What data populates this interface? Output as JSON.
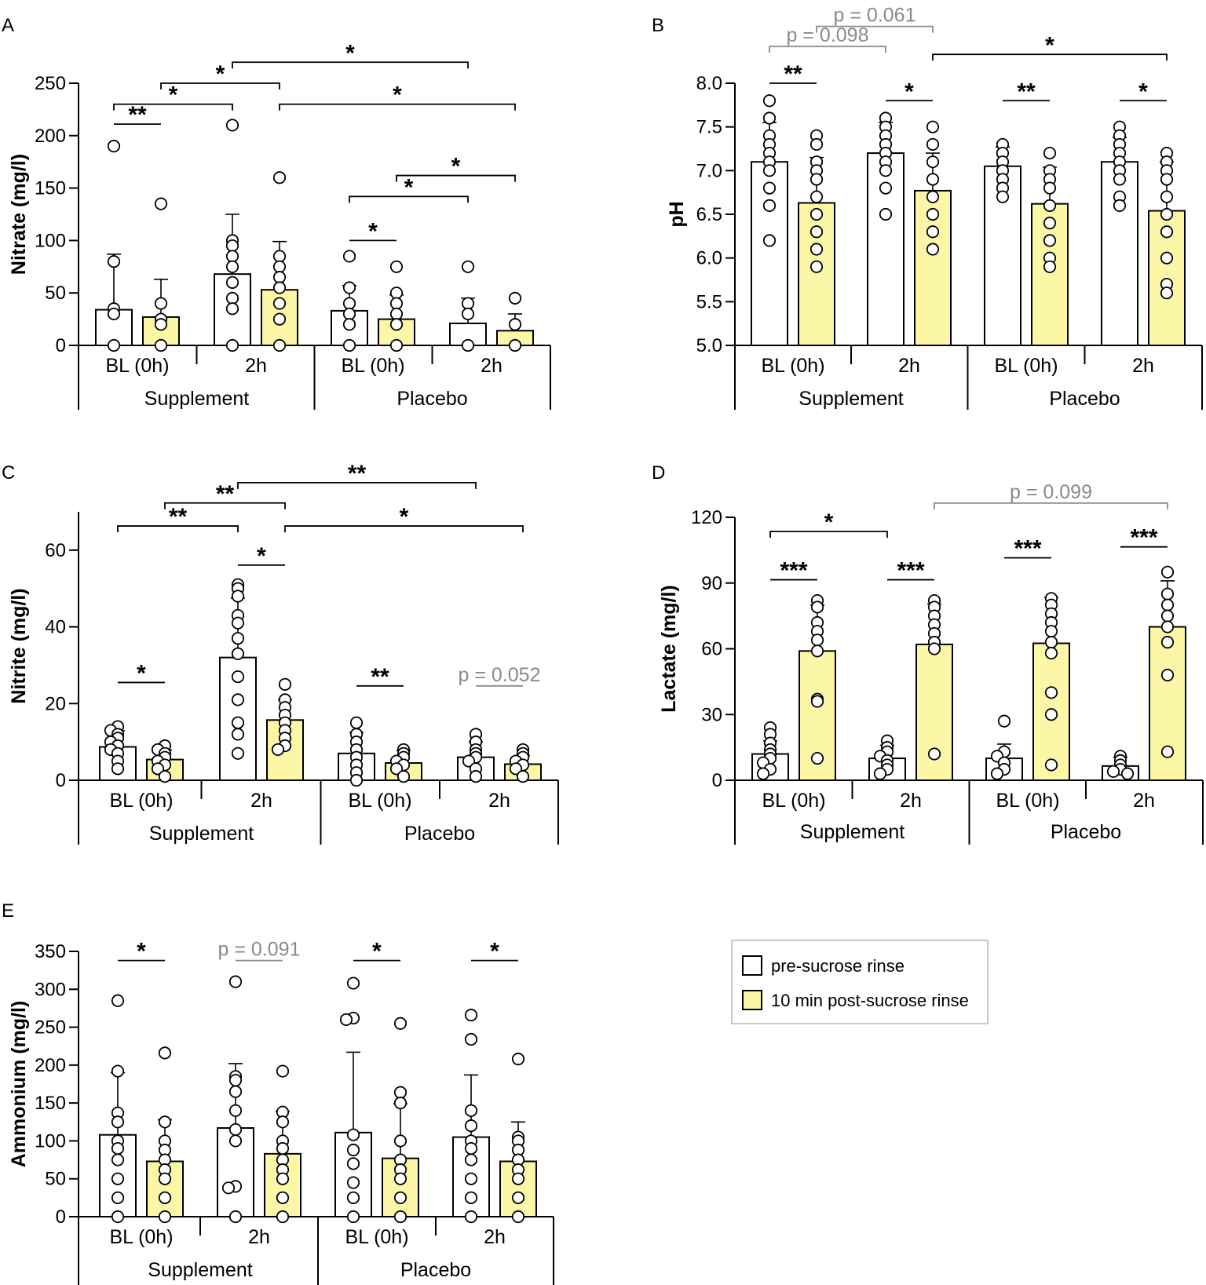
{
  "colors": {
    "pre": "#ffffff",
    "post": "#fcf7a6",
    "stroke": "#000000",
    "grey": "#8a8a8a"
  },
  "legend": {
    "pre_label": "pre-sucrose rinse",
    "post_label": "10 min post-sucrose rinse"
  },
  "chart_data": [
    {
      "panel": "A",
      "type": "bar",
      "ylabel": "Nitrate (mg/l)",
      "ylim": [
        0,
        250
      ],
      "yticks": [
        0,
        50,
        100,
        150,
        200,
        250
      ],
      "groups": [
        "Supplement",
        "Placebo"
      ],
      "timepoints": [
        "BL (0h)",
        "2h",
        "BL (0h)",
        "2h"
      ],
      "series": [
        {
          "name": "pre-sucrose rinse",
          "values": [
            34,
            68,
            33,
            21
          ],
          "sd": [
            53,
            57,
            24,
            24
          ],
          "points": [
            [
              190,
              80,
              35,
              30,
              0
            ],
            [
              210,
              100,
              95,
              85,
              75,
              60,
              45,
              35,
              0
            ],
            [
              85,
              55,
              40,
              30,
              20,
              0
            ],
            [
              75,
              40,
              30,
              0
            ]
          ]
        },
        {
          "name": "10 min post-sucrose rinse",
          "values": [
            27,
            53,
            25,
            14
          ],
          "sd": [
            36,
            46,
            23,
            16
          ],
          "points": [
            [
              135,
              40,
              25,
              20,
              0
            ],
            [
              160,
              85,
              75,
              65,
              55,
              40,
              25,
              0
            ],
            [
              75,
              50,
              40,
              30,
              20,
              0
            ],
            [
              45,
              20,
              0
            ]
          ]
        }
      ],
      "significance": [
        {
          "label": "**",
          "from": [
            0,
            0
          ],
          "to": [
            0,
            1
          ],
          "y": 211,
          "color": "black"
        },
        {
          "label": "*",
          "from": [
            0,
            0
          ],
          "to": [
            1,
            0
          ],
          "y": 230,
          "color": "black"
        },
        {
          "label": "*",
          "from": [
            0,
            1
          ],
          "to": [
            1,
            1
          ],
          "y": 250,
          "color": "black"
        },
        {
          "label": "*",
          "from": [
            1,
            0
          ],
          "to": [
            3,
            0
          ],
          "y": 270,
          "color": "black"
        },
        {
          "label": "*",
          "from": [
            1,
            1
          ],
          "to": [
            3,
            1
          ],
          "y": 230,
          "color": "black"
        },
        {
          "label": "*",
          "from": [
            2,
            0
          ],
          "to": [
            2,
            1
          ],
          "y": 100,
          "color": "black"
        },
        {
          "label": "*",
          "from": [
            2,
            0
          ],
          "to": [
            3,
            0
          ],
          "y": 142,
          "color": "black"
        },
        {
          "label": "*",
          "from": [
            2,
            1
          ],
          "to": [
            3,
            1
          ],
          "y": 162,
          "color": "black"
        }
      ]
    },
    {
      "panel": "B",
      "type": "bar",
      "ylabel": "pH",
      "ylim": [
        5.0,
        8.0
      ],
      "yticks": [
        "5.0",
        "5.5",
        "6.0",
        "6.5",
        "7.0",
        "7.5",
        "8.0"
      ],
      "groups": [
        "Supplement",
        "Placebo"
      ],
      "timepoints": [
        "BL (0h)",
        "2h",
        "BL (0h)",
        "2h"
      ],
      "series": [
        {
          "name": "pre-sucrose rinse",
          "values": [
            7.1,
            7.2,
            7.05,
            7.1
          ],
          "sd": [
            0.45,
            0.35,
            0.22,
            0.28
          ],
          "points": [
            [
              7.8,
              7.6,
              7.4,
              7.3,
              7.2,
              7.1,
              7.0,
              6.8,
              6.6,
              6.2
            ],
            [
              7.6,
              7.5,
              7.4,
              7.3,
              7.2,
              7.1,
              7.0,
              6.8,
              6.5
            ],
            [
              7.3,
              7.2,
              7.1,
              7.0,
              6.9,
              6.8,
              6.7
            ],
            [
              7.5,
              7.4,
              7.3,
              7.2,
              7.1,
              7.0,
              6.9,
              6.7,
              6.6
            ]
          ]
        },
        {
          "name": "10 min post-sucrose rinse",
          "values": [
            6.63,
            6.77,
            6.62,
            6.54
          ],
          "sd": [
            0.52,
            0.43,
            0.42,
            0.56
          ],
          "points": [
            [
              7.4,
              7.3,
              7.1,
              7.0,
              6.9,
              6.7,
              6.5,
              6.3,
              6.1,
              5.9
            ],
            [
              7.5,
              7.3,
              7.1,
              6.9,
              6.7,
              6.5,
              6.3,
              6.1
            ],
            [
              7.2,
              7.0,
              6.9,
              6.8,
              6.6,
              6.4,
              6.2,
              6.0,
              5.9
            ],
            [
              7.2,
              7.1,
              7.0,
              6.9,
              6.7,
              6.5,
              6.3,
              6.0,
              5.7,
              5.6
            ]
          ]
        }
      ],
      "significance": [
        {
          "label": "**",
          "from": [
            0,
            0
          ],
          "to": [
            0,
            1
          ],
          "y": 8.0,
          "color": "black"
        },
        {
          "label": "*",
          "from": [
            1,
            0
          ],
          "to": [
            1,
            1
          ],
          "y": 7.8,
          "color": "black"
        },
        {
          "label": "**",
          "from": [
            2,
            0
          ],
          "to": [
            2,
            1
          ],
          "y": 7.8,
          "color": "black"
        },
        {
          "label": "*",
          "from": [
            3,
            0
          ],
          "to": [
            3,
            1
          ],
          "y": 7.8,
          "color": "black"
        },
        {
          "label": "*",
          "from": [
            1,
            1
          ],
          "to": [
            3,
            1
          ],
          "y": 8.33,
          "color": "black"
        },
        {
          "label": "p = 0.098",
          "from": [
            0,
            0
          ],
          "to": [
            1,
            0
          ],
          "y": 8.42,
          "color": "grey"
        },
        {
          "label": "p = 0.061",
          "from": [
            0,
            1
          ],
          "to": [
            1,
            1
          ],
          "y": 8.65,
          "color": "grey"
        }
      ]
    },
    {
      "panel": "C",
      "type": "bar",
      "ylabel": "Nitrite (mg/l)",
      "ylim": [
        0,
        70
      ],
      "yticks": [
        0,
        20,
        40,
        60
      ],
      "groups": [
        "Supplement",
        "Placebo"
      ],
      "timepoints": [
        "BL (0h)",
        "2h",
        "BL (0h)",
        "2h"
      ],
      "series": [
        {
          "name": "pre-sucrose rinse",
          "values": [
            8.7,
            32,
            7,
            6
          ],
          "sd": [
            4.2,
            15.5,
            5.5,
            4
          ],
          "points": [
            [
              14,
              13,
              12,
              11,
              10,
              9,
              8,
              7,
              5,
              3
            ],
            [
              51,
              50,
              48,
              43,
              41,
              37,
              33,
              27,
              21,
              15,
              12,
              7
            ],
            [
              15,
              12,
              10,
              8,
              6,
              4,
              2,
              0
            ],
            [
              12,
              10,
              8,
              7,
              6,
              5,
              3,
              1
            ]
          ]
        },
        {
          "name": "10 min post-sucrose rinse",
          "values": [
            5.4,
            15.7,
            4.5,
            4.2
          ],
          "sd": [
            2.5,
            5.3,
            3.2,
            2.2
          ],
          "points": [
            [
              9,
              8,
              7,
              6,
              5,
              4,
              3,
              1
            ],
            [
              25,
              21,
              19,
              17,
              15,
              13,
              11,
              9,
              8
            ],
            [
              8,
              7,
              6,
              5,
              4,
              3,
              1
            ],
            [
              8,
              7,
              6,
              5,
              4,
              3,
              1
            ]
          ]
        }
      ],
      "significance": [
        {
          "label": "*",
          "from": [
            0,
            0
          ],
          "to": [
            0,
            1
          ],
          "y": 25.5,
          "color": "black"
        },
        {
          "label": "**",
          "from": [
            0,
            0
          ],
          "to": [
            1,
            0
          ],
          "y": 66.3,
          "color": "black"
        },
        {
          "label": "**",
          "from": [
            0,
            1
          ],
          "to": [
            1,
            1
          ],
          "y": 72.3,
          "color": "black"
        },
        {
          "label": "**",
          "from": [
            1,
            0
          ],
          "to": [
            3,
            0
          ],
          "y": 77.6,
          "color": "black"
        },
        {
          "label": "*",
          "from": [
            1,
            0
          ],
          "to": [
            1,
            1
          ],
          "y": 56.1,
          "color": "black"
        },
        {
          "label": "*",
          "from": [
            1,
            1
          ],
          "to": [
            3,
            1
          ],
          "y": 66.3,
          "color": "black"
        },
        {
          "label": "**",
          "from": [
            2,
            0
          ],
          "to": [
            2,
            1
          ],
          "y": 24.6,
          "color": "black"
        },
        {
          "label": "p = 0.052",
          "from": [
            3,
            0
          ],
          "to": [
            3,
            1
          ],
          "y": 24.6,
          "color": "grey"
        }
      ]
    },
    {
      "panel": "D",
      "type": "bar",
      "ylabel": "Lactate (mg/l)",
      "ylim": [
        0,
        120
      ],
      "yticks": [
        0,
        30,
        60,
        90,
        120
      ],
      "groups": [
        "Supplement",
        "Placebo"
      ],
      "timepoints": [
        "BL (0h)",
        "2h",
        "BL (0h)",
        "2h"
      ],
      "series": [
        {
          "name": "pre-sucrose rinse",
          "values": [
            12,
            10,
            10,
            6.5
          ],
          "sd": [
            6,
            6,
            6.5,
            4
          ],
          "points": [
            [
              24,
              21,
              17,
              14,
              12,
              10,
              8,
              5,
              3
            ],
            [
              18,
              15,
              13,
              11,
              9,
              7,
              5,
              3
            ],
            [
              27,
              13,
              11,
              8,
              5,
              3
            ],
            [
              11,
              9,
              7,
              5,
              4,
              3
            ]
          ]
        },
        {
          "name": "10 min post-sucrose rinse",
          "values": [
            59,
            62,
            62.5,
            70
          ],
          "sd": [
            21,
            18.5,
            21,
            21
          ],
          "points": [
            [
              82,
              79,
              72,
              68,
              64,
              59,
              37,
              36,
              10
            ],
            [
              82,
              79,
              75,
              71,
              67,
              63,
              60,
              12
            ],
            [
              83,
              80,
              76,
              72,
              68,
              63,
              58,
              40,
              30,
              7
            ],
            [
              95,
              85,
              80,
              75,
              70,
              63,
              48,
              13
            ]
          ]
        }
      ],
      "significance": [
        {
          "label": "***",
          "from": [
            0,
            0
          ],
          "to": [
            0,
            1
          ],
          "y": 91.5,
          "color": "black"
        },
        {
          "label": "***",
          "from": [
            1,
            0
          ],
          "to": [
            1,
            1
          ],
          "y": 91.5,
          "color": "black"
        },
        {
          "label": "***",
          "from": [
            2,
            0
          ],
          "to": [
            2,
            1
          ],
          "y": 101.5,
          "color": "black"
        },
        {
          "label": "***",
          "from": [
            3,
            0
          ],
          "to": [
            3,
            1
          ],
          "y": 106.5,
          "color": "black"
        },
        {
          "label": "*",
          "from": [
            0,
            0
          ],
          "to": [
            1,
            0
          ],
          "y": 113.5,
          "color": "black"
        },
        {
          "label": "p = 0.099",
          "from": [
            1,
            1
          ],
          "to": [
            3,
            1
          ],
          "y": 126.5,
          "color": "grey"
        }
      ]
    },
    {
      "panel": "E",
      "type": "bar",
      "ylabel": "Ammonium (mg/l)",
      "ylim": [
        0,
        350
      ],
      "yticks": [
        0,
        50,
        100,
        150,
        200,
        250,
        300,
        350
      ],
      "groups": [
        "Supplement",
        "Placebo"
      ],
      "timepoints": [
        "BL (0h)",
        "2h",
        "BL (0h)",
        "2h"
      ],
      "series": [
        {
          "name": "pre-sucrose rinse",
          "values": [
            108,
            117,
            111,
            105
          ],
          "sd": [
            82,
            85,
            106,
            82
          ],
          "points": [
            [
              285,
              192,
              137,
              125,
              100,
              90,
              75,
              50,
              25,
              0
            ],
            [
              310,
              185,
              180,
              165,
              140,
              115,
              100,
              40,
              38,
              0
            ],
            [
              308,
              262,
              260,
              108,
              88,
              70,
              45,
              25,
              0
            ],
            [
              266,
              234,
              140,
              120,
              100,
              90,
              75,
              50,
              25,
              0
            ]
          ]
        },
        {
          "name": "10 min post-sucrose rinse",
          "values": [
            73,
            83,
            77,
            73
          ],
          "sd": [
            55,
            56,
            72,
            52
          ],
          "points": [
            [
              216,
              125,
              100,
              88,
              75,
              62,
              50,
              25,
              0
            ],
            [
              192,
              138,
              125,
              100,
              90,
              75,
              62,
              50,
              25,
              0
            ],
            [
              255,
              164,
              150,
              100,
              75,
              62,
              50,
              25,
              0
            ],
            [
              208,
              105,
              100,
              88,
              75,
              62,
              50,
              25,
              0
            ]
          ]
        }
      ],
      "significance": [
        {
          "label": "*",
          "from": [
            0,
            0
          ],
          "to": [
            0,
            1
          ],
          "y": 338,
          "color": "black"
        },
        {
          "label": "p = 0.091",
          "from": [
            1,
            0
          ],
          "to": [
            1,
            1
          ],
          "y": 338,
          "color": "grey"
        },
        {
          "label": "*",
          "from": [
            2,
            0
          ],
          "to": [
            2,
            1
          ],
          "y": 338,
          "color": "black"
        },
        {
          "label": "*",
          "from": [
            3,
            0
          ],
          "to": [
            3,
            1
          ],
          "y": 338,
          "color": "black"
        }
      ]
    }
  ]
}
